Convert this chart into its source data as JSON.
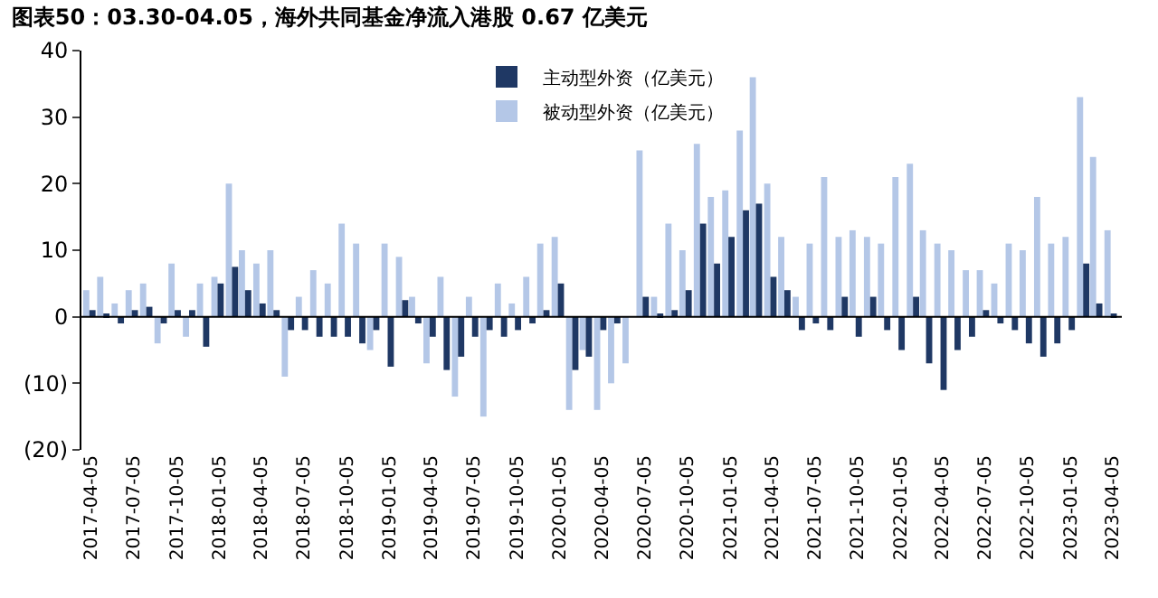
{
  "chart_data": {
    "type": "bar",
    "title": "图表50：03.30-04.05，海外共同基金净流入港股 0.67 亿美元",
    "x": [
      "2017-04",
      "2017-05",
      "2017-06",
      "2017-07",
      "2017-08",
      "2017-09",
      "2017-10",
      "2017-11",
      "2017-12",
      "2018-01",
      "2018-02",
      "2018-03",
      "2018-04",
      "2018-05",
      "2018-06",
      "2018-07",
      "2018-08",
      "2018-09",
      "2018-10",
      "2018-11",
      "2018-12",
      "2019-01",
      "2019-02",
      "2019-03",
      "2019-04",
      "2019-05",
      "2019-06",
      "2019-07",
      "2019-08",
      "2019-09",
      "2019-10",
      "2019-11",
      "2019-12",
      "2020-01",
      "2020-02",
      "2020-03",
      "2020-04",
      "2020-05",
      "2020-06",
      "2020-07",
      "2020-08",
      "2020-09",
      "2020-10",
      "2020-11",
      "2020-12",
      "2021-01",
      "2021-02",
      "2021-03",
      "2021-04",
      "2021-05",
      "2021-06",
      "2021-07",
      "2021-08",
      "2021-09",
      "2021-10",
      "2021-11",
      "2021-12",
      "2022-01",
      "2022-02",
      "2022-03",
      "2022-04",
      "2022-05",
      "2022-06",
      "2022-07",
      "2022-08",
      "2022-09",
      "2022-10",
      "2022-11",
      "2022-12",
      "2023-01",
      "2023-02",
      "2023-03",
      "2023-04"
    ],
    "series": [
      {
        "name": "被动型外资（亿美元）",
        "color": "#b4c7e7",
        "values": [
          4,
          6,
          2,
          4,
          5,
          -4,
          8,
          -3,
          5,
          6,
          20,
          10,
          8,
          10,
          -9,
          3,
          7,
          5,
          14,
          11,
          -5,
          11,
          9,
          3,
          -7,
          6,
          -12,
          3,
          -15,
          5,
          2,
          6,
          11,
          12,
          -14,
          -5,
          -14,
          -10,
          -7,
          25,
          3,
          14,
          10,
          26,
          18,
          19,
          28,
          36,
          20,
          12,
          3,
          11,
          21,
          12,
          13,
          12,
          11,
          21,
          23,
          13,
          11,
          10,
          7,
          7,
          5,
          11,
          10,
          18,
          11,
          12,
          33,
          24,
          13
        ]
      },
      {
        "name": "主动型外资（亿美元）",
        "color": "#1f3864",
        "values": [
          1,
          0.5,
          -1,
          1,
          1.5,
          -1,
          1,
          1,
          -4.5,
          5,
          7.5,
          4,
          2,
          1,
          -2,
          -2,
          -3,
          -3,
          -3,
          -4,
          -2,
          -7.5,
          2.5,
          -1,
          -3,
          -8,
          -6,
          -3,
          -2,
          -3,
          -2,
          -1,
          1,
          5,
          -8,
          -6,
          -2,
          -1,
          0,
          3,
          0.5,
          1,
          4,
          14,
          8,
          12,
          16,
          17,
          6,
          4,
          -2,
          -1,
          -2,
          3,
          -3,
          3,
          -2,
          -5,
          3,
          -7,
          -11,
          -5,
          -3,
          1,
          -1,
          -2,
          -4,
          -6,
          -4,
          -2,
          8,
          2,
          0.5
        ]
      }
    ],
    "ylim": [
      -20,
      40
    ],
    "yticks": [
      {
        "value": -20,
        "label": "(20)"
      },
      {
        "value": -10,
        "label": "(10)"
      },
      0,
      10,
      20,
      30,
      40
    ],
    "xlim": [
      "2017-03-15",
      "2023-04-25"
    ],
    "xticks": [
      "2017-04-05",
      "2017-07-05",
      "2017-10-05",
      "2018-01-05",
      "2018-04-05",
      "2018-07-05",
      "2018-10-05",
      "2019-01-05",
      "2019-04-05",
      "2019-07-05",
      "2019-10-05",
      "2020-01-05",
      "2020-04-05",
      "2020-07-05",
      "2020-10-05",
      "2021-01-05",
      "2021-04-05",
      "2021-07-05",
      "2021-10-05",
      "2022-01-05",
      "2022-04-05",
      "2022-07-05",
      "2022-10-05",
      "2023-01-05",
      "2023-04-05"
    ],
    "ref_lines": [
      {
        "axis": "y",
        "value": 0,
        "color": "#000000"
      }
    ],
    "legend": "top"
  }
}
